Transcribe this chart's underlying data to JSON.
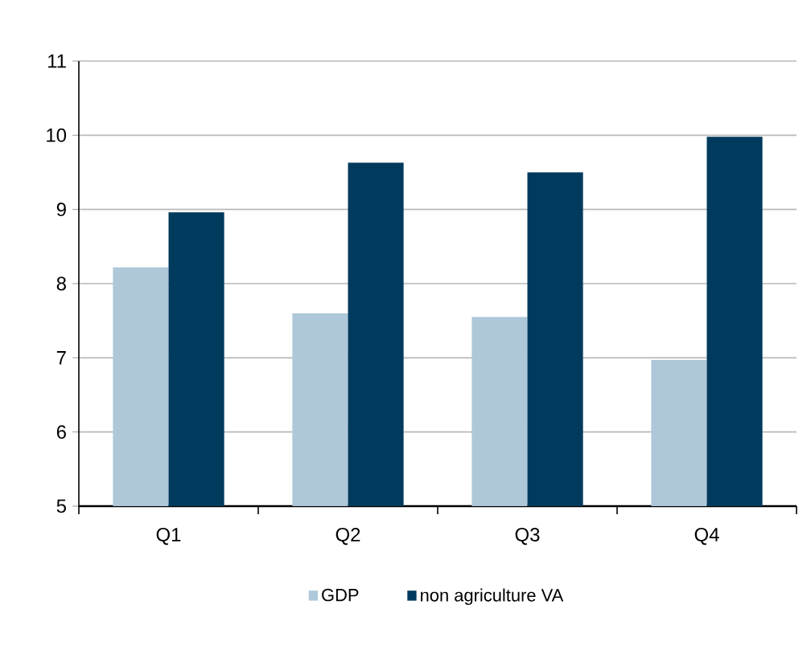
{
  "chart_data": {
    "type": "bar",
    "categories": [
      "Q1",
      "Q2",
      "Q3",
      "Q4"
    ],
    "series": [
      {
        "name": "GDP",
        "color": "#aec8d9",
        "values": [
          8.22,
          7.6,
          7.55,
          6.97
        ]
      },
      {
        "name": "non agriculture VA",
        "color": "#003a5c",
        "values": [
          8.96,
          9.63,
          9.5,
          9.98
        ]
      }
    ],
    "ylim": [
      5,
      11
    ],
    "yticks": [
      5,
      6,
      7,
      8,
      9,
      10,
      11
    ],
    "grid": "y",
    "legend": "bottom"
  }
}
